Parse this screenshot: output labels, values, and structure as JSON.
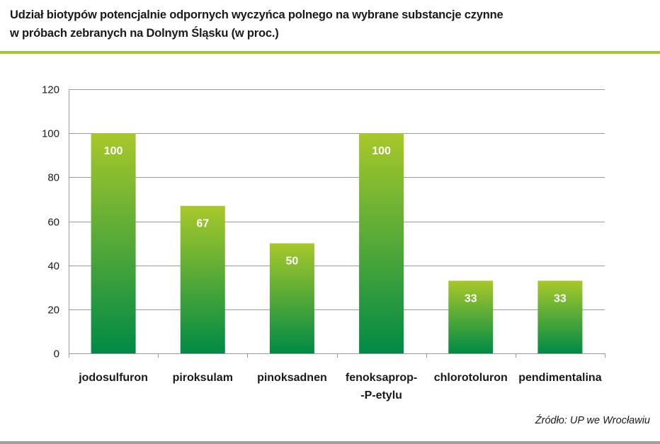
{
  "header": {
    "title_line1": "Udział biotypów potencjalnie odpornych wyczyńca polnego na wybrane substancje czynne",
    "title_line2": "w próbach zebranych na Dolnym Śląsku (w proc.)"
  },
  "footer": {
    "source": "Źródło: UP we Wrocławiu"
  },
  "colors": {
    "accent": "#a5c431",
    "bar_top": "#a8c82a",
    "bar_bottom": "#008a45",
    "grid": "#9a9a9a",
    "bottom_rule": "#a0a0a0"
  },
  "chart_data": {
    "type": "bar",
    "title": "Udział biotypów potencjalnie odpornych wyczyńca polnego na wybrane substancje czynne w próbach zebranych na Dolnym Śląsku (w proc.)",
    "categories": [
      [
        "jodosulfuron"
      ],
      [
        "piroksulam"
      ],
      [
        "pinoksadnen"
      ],
      [
        "fenoksaprop-",
        "-P-etylu"
      ],
      [
        "chlorotoluron"
      ],
      [
        "pendimentalina"
      ]
    ],
    "values": [
      100,
      67,
      50,
      100,
      33,
      33
    ],
    "data_labels": [
      "100",
      "67",
      "50",
      "100",
      "33",
      "33"
    ],
    "xlabel": "",
    "ylabel": "",
    "ylim": [
      0,
      120
    ],
    "yticks": [
      0,
      20,
      40,
      60,
      80,
      100,
      120
    ],
    "grid": true,
    "legend": "none"
  }
}
